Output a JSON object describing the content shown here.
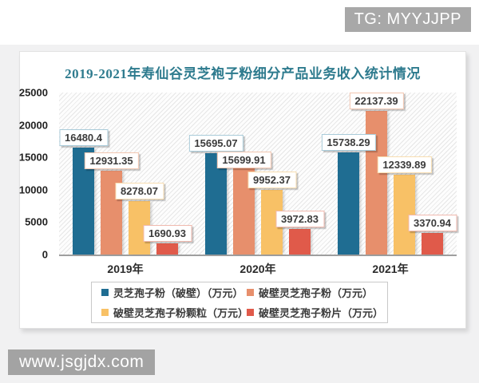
{
  "page": {
    "tg_badge": "TG: MYYJJPP",
    "watermark": "www.jsgjdx.com"
  },
  "chart_data": {
    "type": "bar",
    "title": "2019-2021年寿仙谷灵芝袍子粉细分产品业务收入统计情况",
    "title_color": "#2e7b8e",
    "categories": [
      "2019年",
      "2020年",
      "2021年"
    ],
    "series": [
      {
        "name": "灵芝孢子粉（破壁）（万元）",
        "color": "#1f6d92",
        "label_border": "#a9cbd9",
        "values": [
          16480.4,
          15695.07,
          15738.29
        ]
      },
      {
        "name": "破壁灵芝孢子粉（万元）",
        "color": "#e78f6c",
        "label_border": "#f2c6b0",
        "values": [
          12931.35,
          15699.91,
          22137.39
        ]
      },
      {
        "name": "破壁灵芝孢子粉颗粒（万元）",
        "color": "#f8c166",
        "label_border": "#f8ddb0",
        "values": [
          8278.07,
          9952.37,
          12339.89
        ]
      },
      {
        "name": "破壁灵芝孢子粉片（万元）",
        "color": "#e05a4a",
        "label_border": "#f0b9ae",
        "values": [
          1690.93,
          3972.83,
          3370.94
        ]
      }
    ],
    "ylim": [
      0,
      25000
    ],
    "yticks": [
      0,
      5000,
      10000,
      15000,
      20000,
      25000
    ],
    "grid": false,
    "plot_background": "diagonal-hatch",
    "legend_position": "bottom"
  }
}
